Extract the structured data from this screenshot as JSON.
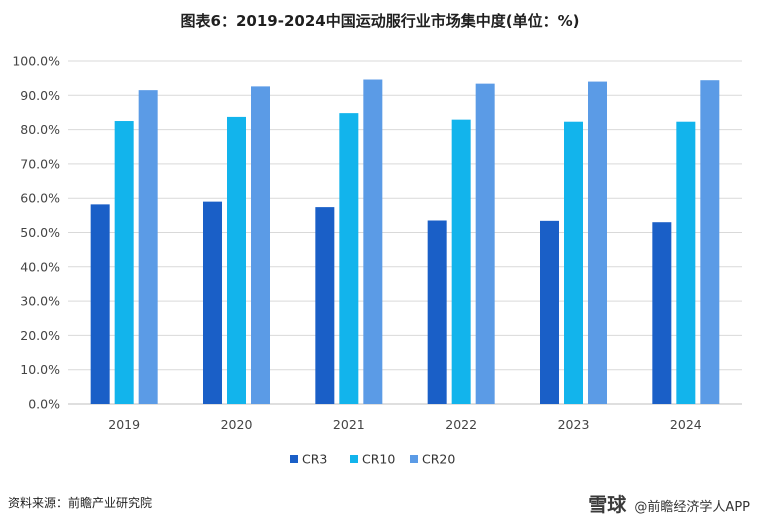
{
  "title": "图表6：2019-2024中国运动服行业市场集中度(单位：%)",
  "source": "资料来源：前瞻产业研究院",
  "brand": {
    "mark": "雪球",
    "account": "@前瞻经济学人APP"
  },
  "chart_data": {
    "type": "bar",
    "categories": [
      "2019",
      "2020",
      "2021",
      "2022",
      "2023",
      "2024"
    ],
    "series": [
      {
        "name": "CR3",
        "color": "#1a5fc7",
        "values": [
          58.2,
          59.0,
          57.4,
          53.5,
          53.4,
          53.0
        ]
      },
      {
        "name": "CR10",
        "color": "#12b4ec",
        "values": [
          82.5,
          83.7,
          84.8,
          82.9,
          82.3,
          82.3
        ]
      },
      {
        "name": "CR20",
        "color": "#5b9be6",
        "values": [
          91.5,
          92.6,
          94.6,
          93.4,
          94.0,
          94.4
        ]
      }
    ],
    "ylim": [
      0,
      100
    ],
    "yticks": [
      "0.0%",
      "10.0%",
      "20.0%",
      "30.0%",
      "40.0%",
      "50.0%",
      "60.0%",
      "70.0%",
      "80.0%",
      "90.0%",
      "100.0%"
    ],
    "grid": true,
    "legend_position": "bottom-center"
  }
}
